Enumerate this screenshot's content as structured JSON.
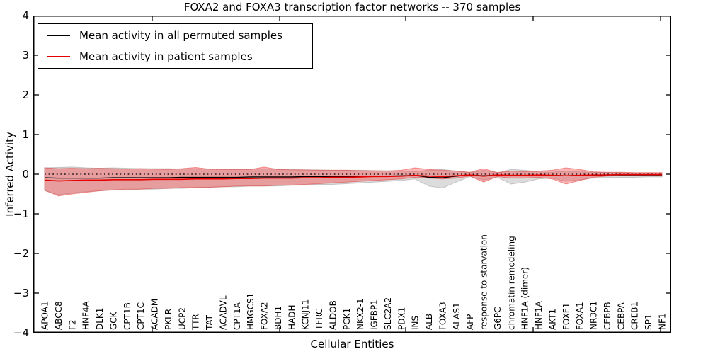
{
  "title": "FOXA2 and FOXA3 transcription factor networks -- 370 samples",
  "legend": {
    "items": [
      {
        "label": "Mean activity in all permuted samples",
        "color": "#000000"
      },
      {
        "label": "Mean activity in patient samples",
        "color": "#e60000"
      }
    ],
    "position": "upper left"
  },
  "chart_data": {
    "type": "line",
    "title": "FOXA2 and FOXA3 transcription factor networks -- 370 samples",
    "xlabel": "Cellular Entities",
    "ylabel": "Inferred Activity",
    "ylim": [
      -4,
      4
    ],
    "ytick_labels": [
      "4",
      "3",
      "2",
      "1",
      "0",
      "−1",
      "−2",
      "−3",
      "−4"
    ],
    "grid": false,
    "legend_position": "upper left",
    "zero_reference_line": 0,
    "categories": [
      "APOA1",
      "ABCC8",
      "F2",
      "HNF4A",
      "DLK1",
      "GCK",
      "CPT1B",
      "CPT1C",
      "ACADM",
      "PKLR",
      "UCP2",
      "TTR",
      "TAT",
      "ACADVL",
      "CPT1A",
      "HMGCS1",
      "FOXA2",
      "BDH1",
      "HADH",
      "KCNJ11",
      "TFRC",
      "ALDOB",
      "PCK1",
      "NKX2-1",
      "IGFBP1",
      "SLC2A2",
      "PDX1",
      "INS",
      "ALB",
      "FOXA3",
      "ALAS1",
      "AFP",
      "response to starvation",
      "G6PC",
      "chromatin remodeling",
      "HNF1A (dimer)",
      "HNF1A",
      "AKT1",
      "FOXF1",
      "FOXA1",
      "NR3C1",
      "CEBPB",
      "CEBPA",
      "CREB1",
      "SP1",
      "NF1"
    ],
    "series": [
      {
        "name": "Mean activity in all permuted samples",
        "color": "#000000",
        "width": 1.3,
        "values": [
          -0.09,
          -0.1,
          -0.1,
          -0.1,
          -0.1,
          -0.09,
          -0.09,
          -0.09,
          -0.09,
          -0.09,
          -0.08,
          -0.08,
          -0.08,
          -0.08,
          -0.08,
          -0.07,
          -0.07,
          -0.07,
          -0.07,
          -0.06,
          -0.06,
          -0.06,
          -0.06,
          -0.05,
          -0.05,
          -0.05,
          -0.04,
          -0.03,
          -0.08,
          -0.09,
          -0.05,
          -0.02,
          -0.04,
          -0.02,
          -0.04,
          -0.04,
          -0.03,
          -0.03,
          -0.04,
          -0.03,
          -0.03,
          -0.02,
          -0.02,
          -0.02,
          -0.02,
          -0.02
        ]
      },
      {
        "name": "Mean activity in patient samples",
        "color": "#e60000",
        "width": 1.6,
        "values": [
          -0.15,
          -0.17,
          -0.16,
          -0.15,
          -0.15,
          -0.14,
          -0.14,
          -0.14,
          -0.13,
          -0.13,
          -0.13,
          -0.12,
          -0.12,
          -0.12,
          -0.11,
          -0.11,
          -0.1,
          -0.1,
          -0.1,
          -0.09,
          -0.09,
          -0.08,
          -0.08,
          -0.07,
          -0.06,
          -0.06,
          -0.05,
          -0.03,
          -0.05,
          -0.06,
          -0.04,
          -0.02,
          -0.05,
          -0.02,
          -0.03,
          -0.03,
          -0.02,
          -0.03,
          -0.04,
          -0.03,
          -0.02,
          -0.02,
          -0.01,
          -0.01,
          -0.01,
          -0.01
        ]
      }
    ],
    "bands": [
      {
        "name": "permuted-samples-std-band",
        "fill": "rgba(130,130,130,0.28)",
        "stroke": "rgba(120,120,120,0.35)",
        "upper": [
          0.16,
          0.17,
          0.18,
          0.16,
          0.15,
          0.16,
          0.15,
          0.14,
          0.14,
          0.14,
          0.13,
          0.14,
          0.13,
          0.13,
          0.12,
          0.13,
          0.14,
          0.12,
          0.12,
          0.11,
          0.11,
          0.1,
          0.1,
          0.1,
          0.09,
          0.09,
          0.08,
          0.07,
          0.1,
          0.12,
          0.08,
          0.04,
          0.1,
          0.04,
          0.12,
          0.1,
          0.06,
          0.05,
          0.08,
          0.06,
          0.05,
          0.04,
          0.04,
          0.03,
          0.03,
          0.03
        ],
        "lower": [
          -0.42,
          -0.52,
          -0.48,
          -0.44,
          -0.42,
          -0.4,
          -0.4,
          -0.38,
          -0.38,
          -0.36,
          -0.36,
          -0.34,
          -0.33,
          -0.32,
          -0.32,
          -0.3,
          -0.3,
          -0.3,
          -0.28,
          -0.28,
          -0.26,
          -0.26,
          -0.24,
          -0.22,
          -0.2,
          -0.18,
          -0.16,
          -0.12,
          -0.3,
          -0.35,
          -0.2,
          -0.06,
          -0.15,
          -0.08,
          -0.25,
          -0.2,
          -0.12,
          -0.1,
          -0.18,
          -0.14,
          -0.1,
          -0.09,
          -0.08,
          -0.08,
          -0.07,
          -0.07
        ]
      },
      {
        "name": "patient-samples-std-band",
        "fill": "rgba(255,30,30,0.33)",
        "stroke": "rgba(225,40,40,0.45)",
        "upper": [
          0.16,
          0.14,
          0.15,
          0.14,
          0.15,
          0.14,
          0.13,
          0.14,
          0.13,
          0.12,
          0.14,
          0.17,
          0.13,
          0.12,
          0.12,
          0.12,
          0.18,
          0.12,
          0.11,
          0.11,
          0.1,
          0.1,
          0.1,
          0.09,
          0.09,
          0.08,
          0.1,
          0.16,
          0.12,
          0.1,
          0.08,
          0.05,
          0.14,
          0.04,
          0.08,
          0.06,
          0.08,
          0.1,
          0.16,
          0.12,
          0.06,
          0.05,
          0.05,
          0.04,
          0.04,
          0.04
        ],
        "lower": [
          -0.4,
          -0.55,
          -0.5,
          -0.46,
          -0.42,
          -0.4,
          -0.38,
          -0.38,
          -0.36,
          -0.36,
          -0.34,
          -0.34,
          -0.33,
          -0.32,
          -0.3,
          -0.3,
          -0.3,
          -0.28,
          -0.28,
          -0.26,
          -0.24,
          -0.22,
          -0.2,
          -0.18,
          -0.16,
          -0.14,
          -0.12,
          -0.08,
          -0.1,
          -0.12,
          -0.1,
          -0.05,
          -0.2,
          -0.06,
          -0.1,
          -0.1,
          -0.08,
          -0.12,
          -0.25,
          -0.16,
          -0.08,
          -0.05,
          -0.04,
          -0.04,
          -0.03,
          -0.03
        ]
      }
    ]
  }
}
